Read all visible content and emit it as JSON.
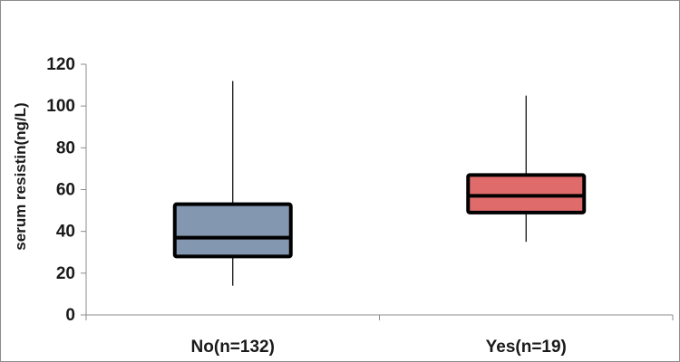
{
  "chart_data": {
    "type": "box",
    "title": "",
    "xlabel": "",
    "ylabel": "serum resistin(ng/L)",
    "ylim": [
      0,
      120
    ],
    "yticks": [
      0,
      20,
      40,
      60,
      80,
      100,
      120
    ],
    "grid": false,
    "categories": [
      "No(n=132)",
      "Yes(n=19)"
    ],
    "boxes": [
      {
        "category": "No(n=132)",
        "min": 14,
        "q1": 28,
        "median": 37,
        "q3": 53,
        "max": 112,
        "color": "#8497b0"
      },
      {
        "category": "Yes(n=19)",
        "min": 35,
        "q1": 49,
        "median": 57,
        "q3": 67,
        "max": 105,
        "color": "#df6b6b"
      }
    ]
  }
}
